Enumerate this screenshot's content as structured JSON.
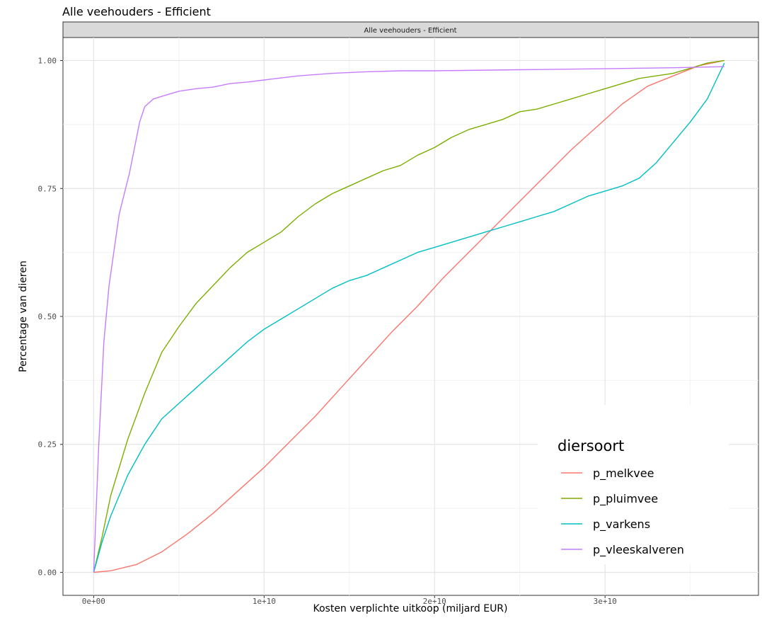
{
  "chart_data": {
    "type": "line",
    "title": "Alle veehouders - Efficient",
    "facet_label": "Alle veehouders - Efficient",
    "xlabel": "Kosten verplichte uitkoop (miljard EUR)",
    "ylabel": "Percentage van dieren",
    "xlim": [
      -1800000000,
      39000000000
    ],
    "ylim": [
      -0.045,
      1.045
    ],
    "x_ticks": [
      0,
      10000000000,
      20000000000,
      30000000000
    ],
    "x_tick_labels": [
      "0e+00",
      "1e+10",
      "2e+10",
      "3e+10"
    ],
    "y_ticks": [
      0,
      0.25,
      0.5,
      0.75,
      1
    ],
    "y_tick_labels": [
      "0.00",
      "0.25",
      "0.50",
      "0.75",
      "1.00"
    ],
    "grid": true,
    "legend": {
      "title": "diersoort",
      "position": "bottom-right"
    },
    "series": [
      {
        "name": "p_melkvee",
        "color": "#F8766D",
        "points": [
          [
            0,
            0
          ],
          [
            1000000000,
            0.003
          ],
          [
            2500000000,
            0.015
          ],
          [
            4000000000,
            0.04
          ],
          [
            5500000000,
            0.075
          ],
          [
            7000000000,
            0.115
          ],
          [
            8500000000,
            0.16
          ],
          [
            10000000000,
            0.205
          ],
          [
            11500000000,
            0.255
          ],
          [
            13000000000,
            0.305
          ],
          [
            14500000000,
            0.36
          ],
          [
            16000000000,
            0.415
          ],
          [
            17500000000,
            0.47
          ],
          [
            19000000000,
            0.52
          ],
          [
            20500000000,
            0.575
          ],
          [
            22000000000,
            0.625
          ],
          [
            23500000000,
            0.675
          ],
          [
            25000000000,
            0.725
          ],
          [
            26500000000,
            0.775
          ],
          [
            28000000000,
            0.825
          ],
          [
            29500000000,
            0.87
          ],
          [
            31000000000,
            0.915
          ],
          [
            32500000000,
            0.95
          ],
          [
            34000000000,
            0.97
          ],
          [
            35500000000,
            0.99
          ],
          [
            37000000000,
            1.0
          ]
        ]
      },
      {
        "name": "p_pluimvee",
        "color": "#7CAE00",
        "points": [
          [
            0,
            0
          ],
          [
            500000000,
            0.07
          ],
          [
            1000000000,
            0.15
          ],
          [
            2000000000,
            0.26
          ],
          [
            3000000000,
            0.35
          ],
          [
            4000000000,
            0.43
          ],
          [
            5000000000,
            0.48
          ],
          [
            6000000000,
            0.525
          ],
          [
            7000000000,
            0.56
          ],
          [
            8000000000,
            0.595
          ],
          [
            9000000000,
            0.625
          ],
          [
            10000000000,
            0.645
          ],
          [
            11000000000,
            0.665
          ],
          [
            12000000000,
            0.695
          ],
          [
            13000000000,
            0.72
          ],
          [
            14000000000,
            0.74
          ],
          [
            15000000000,
            0.755
          ],
          [
            16000000000,
            0.77
          ],
          [
            17000000000,
            0.785
          ],
          [
            18000000000,
            0.795
          ],
          [
            19000000000,
            0.815
          ],
          [
            20000000000,
            0.83
          ],
          [
            21000000000,
            0.85
          ],
          [
            22000000000,
            0.865
          ],
          [
            23000000000,
            0.875
          ],
          [
            24000000000,
            0.885
          ],
          [
            25000000000,
            0.9
          ],
          [
            26000000000,
            0.905
          ],
          [
            27000000000,
            0.915
          ],
          [
            28000000000,
            0.925
          ],
          [
            29000000000,
            0.935
          ],
          [
            30000000000,
            0.945
          ],
          [
            31000000000,
            0.955
          ],
          [
            32000000000,
            0.965
          ],
          [
            33000000000,
            0.97
          ],
          [
            34000000000,
            0.975
          ],
          [
            35000000000,
            0.985
          ],
          [
            36000000000,
            0.995
          ],
          [
            37000000000,
            1.0
          ]
        ]
      },
      {
        "name": "p_varkens",
        "color": "#00BFC4",
        "points": [
          [
            0,
            0
          ],
          [
            500000000,
            0.06
          ],
          [
            1000000000,
            0.11
          ],
          [
            2000000000,
            0.19
          ],
          [
            3000000000,
            0.25
          ],
          [
            4000000000,
            0.3
          ],
          [
            5000000000,
            0.33
          ],
          [
            6000000000,
            0.36
          ],
          [
            7000000000,
            0.39
          ],
          [
            8000000000,
            0.42
          ],
          [
            9000000000,
            0.45
          ],
          [
            10000000000,
            0.475
          ],
          [
            11000000000,
            0.495
          ],
          [
            12000000000,
            0.515
          ],
          [
            13000000000,
            0.535
          ],
          [
            14000000000,
            0.555
          ],
          [
            15000000000,
            0.57
          ],
          [
            16000000000,
            0.58
          ],
          [
            17000000000,
            0.595
          ],
          [
            18000000000,
            0.61
          ],
          [
            19000000000,
            0.625
          ],
          [
            20000000000,
            0.635
          ],
          [
            21000000000,
            0.645
          ],
          [
            22000000000,
            0.655
          ],
          [
            23000000000,
            0.665
          ],
          [
            24000000000,
            0.675
          ],
          [
            25000000000,
            0.685
          ],
          [
            26000000000,
            0.695
          ],
          [
            27000000000,
            0.705
          ],
          [
            28000000000,
            0.72
          ],
          [
            29000000000,
            0.735
          ],
          [
            30000000000,
            0.745
          ],
          [
            31000000000,
            0.755
          ],
          [
            32000000000,
            0.77
          ],
          [
            33000000000,
            0.8
          ],
          [
            34000000000,
            0.84
          ],
          [
            35000000000,
            0.88
          ],
          [
            36000000000,
            0.925
          ],
          [
            37000000000,
            0.995
          ]
        ]
      },
      {
        "name": "p_vleeskalveren",
        "color": "#C77CFF",
        "points": [
          [
            0,
            0
          ],
          [
            300000000,
            0.25
          ],
          [
            600000000,
            0.45
          ],
          [
            900000000,
            0.56
          ],
          [
            1200000000,
            0.63
          ],
          [
            1500000000,
            0.7
          ],
          [
            1800000000,
            0.74
          ],
          [
            2100000000,
            0.78
          ],
          [
            2400000000,
            0.83
          ],
          [
            2700000000,
            0.88
          ],
          [
            3000000000,
            0.91
          ],
          [
            3500000000,
            0.925
          ],
          [
            4000000000,
            0.93
          ],
          [
            5000000000,
            0.94
          ],
          [
            6000000000,
            0.945
          ],
          [
            7000000000,
            0.948
          ],
          [
            8000000000,
            0.955
          ],
          [
            9000000000,
            0.958
          ],
          [
            10000000000,
            0.962
          ],
          [
            11000000000,
            0.966
          ],
          [
            12000000000,
            0.97
          ],
          [
            14000000000,
            0.975
          ],
          [
            16000000000,
            0.978
          ],
          [
            18000000000,
            0.98
          ],
          [
            20000000000,
            0.98
          ],
          [
            25000000000,
            0.982
          ],
          [
            30000000000,
            0.984
          ],
          [
            34000000000,
            0.986
          ],
          [
            37000000000,
            0.988
          ]
        ]
      }
    ]
  }
}
